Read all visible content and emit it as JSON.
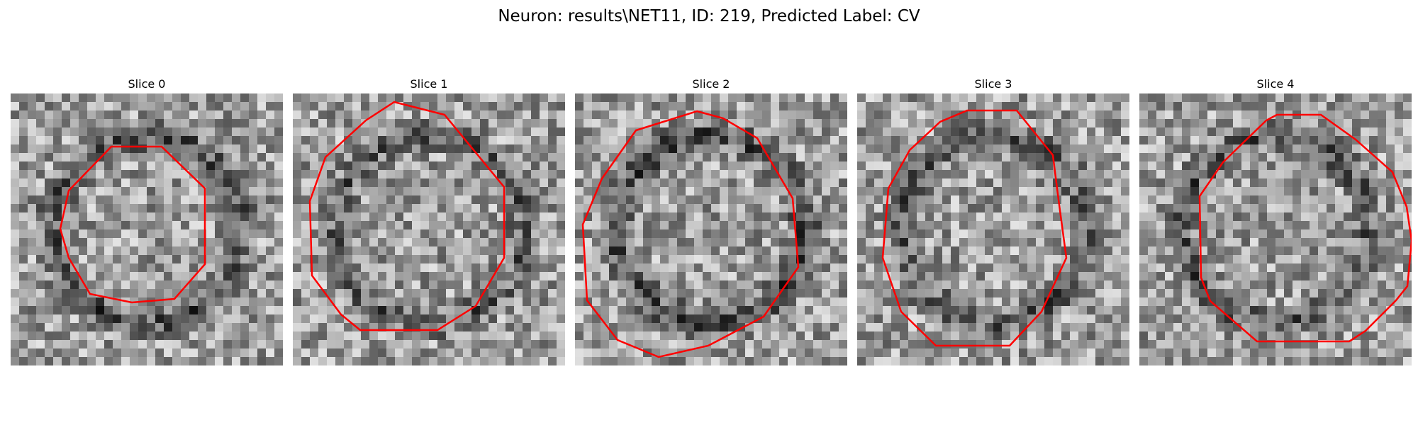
{
  "figure": {
    "title": "Neuron: results\\NET11, ID: 219, Predicted Label: CV"
  },
  "panels": [
    {
      "title": "Slice 0",
      "seed": 11,
      "dark_ring": 0.45,
      "outline_color": "#ff0000"
    },
    {
      "title": "Slice 1",
      "seed": 23,
      "dark_ring": 0.35,
      "outline_color": "#ff0000"
    },
    {
      "title": "Slice 2",
      "seed": 37,
      "dark_ring": 0.5,
      "outline_color": "#ff0000"
    },
    {
      "title": "Slice 3",
      "seed": 41,
      "dark_ring": 0.4,
      "outline_color": "#ff0000"
    },
    {
      "title": "Slice 4",
      "seed": 53,
      "dark_ring": 0.4,
      "outline_color": "#ff0000"
    }
  ]
}
